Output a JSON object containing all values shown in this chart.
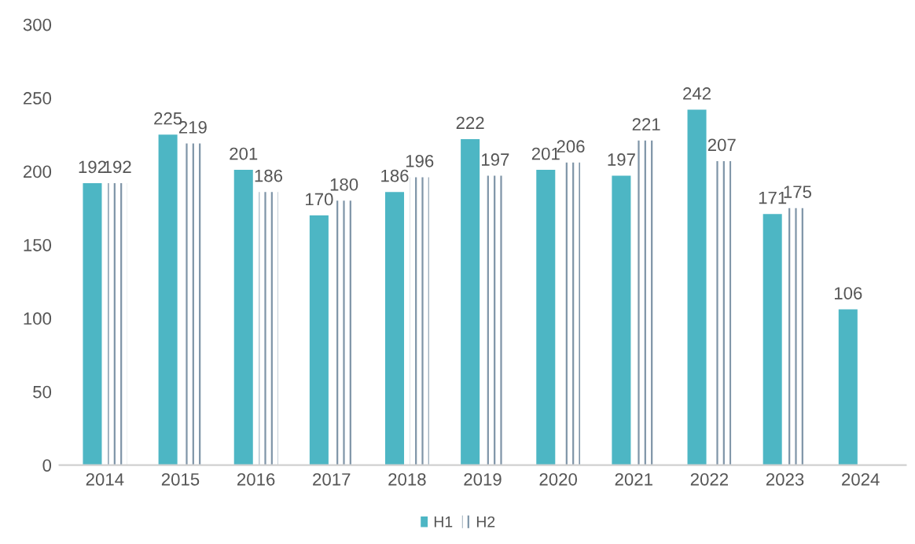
{
  "chart_data": {
    "type": "bar",
    "categories": [
      "2014",
      "2015",
      "2016",
      "2017",
      "2018",
      "2019",
      "2020",
      "2021",
      "2022",
      "2023",
      "2024"
    ],
    "series": [
      {
        "name": "H1",
        "color": "#4db6c4",
        "values": [
          192,
          225,
          201,
          170,
          186,
          222,
          201,
          197,
          242,
          171,
          106
        ]
      },
      {
        "name": "H2",
        "color": "#7f95a8",
        "values": [
          192,
          219,
          186,
          180,
          196,
          197,
          206,
          221,
          207,
          175,
          null
        ]
      }
    ],
    "ylim": [
      0,
      300
    ],
    "yticks": [
      0,
      50,
      100,
      150,
      200,
      250,
      300
    ],
    "grid": false,
    "legend": "bottom",
    "data_labels": true
  }
}
